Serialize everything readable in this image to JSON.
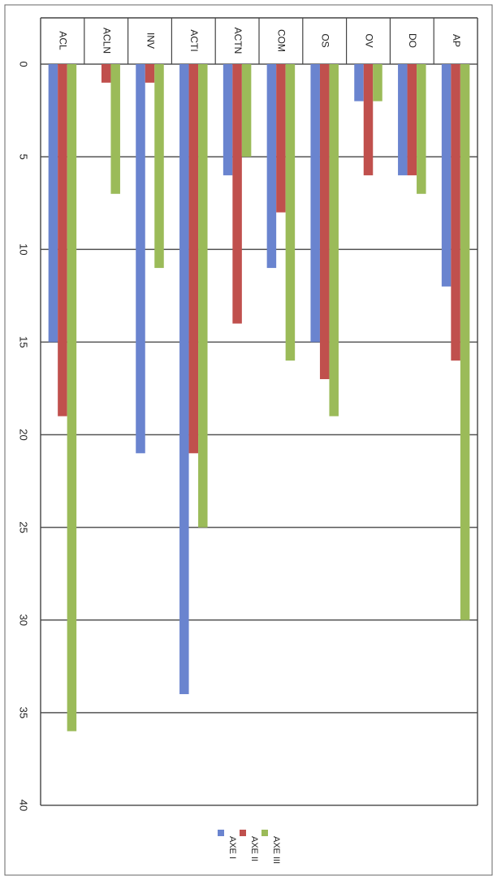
{
  "chart_data": {
    "type": "bar",
    "orientation": "rotated-90-clockwise",
    "categories": [
      "ACL",
      "ACLN",
      "INV",
      "ACTI",
      "ACTN",
      "COM",
      "OS",
      "OV",
      "DO",
      "AP"
    ],
    "series": [
      {
        "name": "AXE I",
        "values": [
          15,
          0,
          21,
          34,
          6,
          11,
          15,
          2,
          6,
          12
        ],
        "color": "#6a84cf"
      },
      {
        "name": "AXE II",
        "values": [
          19,
          1,
          1,
          21,
          14,
          8,
          17,
          6,
          6,
          16
        ],
        "color": "#c0504d"
      },
      {
        "name": "AXE III",
        "values": [
          36,
          7,
          11,
          25,
          5,
          16,
          19,
          2,
          7,
          30
        ],
        "color": "#9bbb59"
      }
    ],
    "ylim": [
      0,
      40
    ],
    "yticks": [
      0,
      5,
      10,
      15,
      20,
      25,
      30,
      35,
      40
    ],
    "grid": true,
    "legend": "bottom"
  },
  "colors": {
    "frame": "#444444",
    "grid": "#555555",
    "background": "#ffffff"
  }
}
